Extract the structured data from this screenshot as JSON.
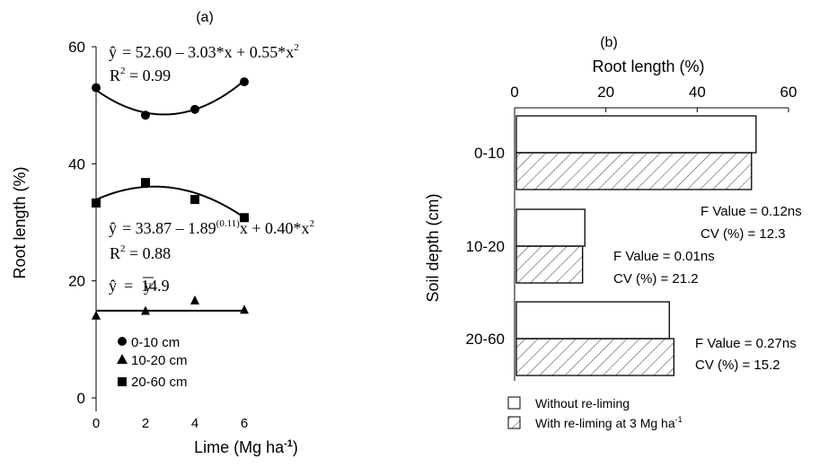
{
  "chart_data": [
    {
      "panel": "(a)",
      "type": "scatter",
      "xlabel": "Lime (Mg ha",
      "xlabel_sup": "-1",
      "xlabel_close": ")",
      "ylabel": "Root length (%)",
      "xlim": [
        0,
        6
      ],
      "ylim": [
        0,
        60
      ],
      "xticks": [
        "0",
        "2",
        "4",
        "6"
      ],
      "yticks": [
        "0",
        "20",
        "40",
        "60"
      ],
      "x": [
        0,
        2,
        4,
        6
      ],
      "series": [
        {
          "name": "0-10 cm",
          "marker": "circle",
          "values": [
            53.0,
            48.3,
            49.3,
            54.0
          ],
          "fit": {
            "a": 52.6,
            "b": -3.03,
            "c": 0.55
          },
          "equation": "= 52.60 – 3.03*x + 0.55*x",
          "equation_sup": "2",
          "r2": "R",
          "r2_sup": "2",
          "r2_value": " = 0.99"
        },
        {
          "name": "10-20 cm",
          "marker": "triangle",
          "values": [
            14.0,
            14.8,
            16.6,
            15.0
          ],
          "fit": {
            "a": 14.9,
            "b": 0,
            "c": 0
          },
          "equation": "=  14.9",
          "ybar": "y"
        },
        {
          "name": "20-60 cm",
          "marker": "square",
          "values": [
            33.3,
            36.8,
            33.9,
            30.8
          ],
          "fit": {
            "a": 33.87,
            "b": 1.89,
            "c": -0.4
          },
          "equation_a": "= 33.87 – 1.89",
          "equation_sup1": "(0.11)",
          "equation_b": "x + 0.40*x",
          "equation_sup2": "2",
          "r2": "R",
          "r2_sup": "2",
          "r2_value": " = 0.88"
        }
      ],
      "hat": "ŷ"
    },
    {
      "panel": "(b)",
      "type": "bar",
      "orientation": "horizontal",
      "xlabel": "Root length (%)",
      "ylabel": "Soil depth (cm)",
      "xlim": [
        0,
        60
      ],
      "xticks": [
        "0",
        "20",
        "40",
        "60"
      ],
      "categories": [
        "0-10",
        "10-20",
        "20-60"
      ],
      "series": [
        {
          "name": "Without re-liming",
          "values": [
            52.5,
            15.0,
            33.5
          ],
          "pattern": "none"
        },
        {
          "name": "With re-liming at 3 Mg ha",
          "name_sup": "-1",
          "values": [
            51.5,
            14.5,
            34.5
          ],
          "pattern": "hatch"
        }
      ],
      "stats": [
        {
          "f": "F Value = 0.12ns",
          "cv": "CV (%) = 12.3"
        },
        {
          "f": "F Value = 0.01ns",
          "cv": "CV (%) = 21.2"
        },
        {
          "f": "F Value = 0.27ns",
          "cv": "CV (%) = 15.2"
        }
      ]
    }
  ]
}
